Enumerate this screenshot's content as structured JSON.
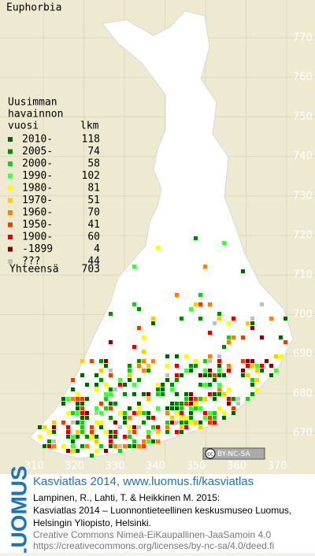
{
  "title": "Euphorbia",
  "legend": {
    "heading": [
      "Uusimman",
      "havainnon",
      "vuosi"
    ],
    "count_heading": "lkm",
    "entries": [
      {
        "label": "2010-",
        "count": 118,
        "color": "#006400"
      },
      {
        "label": "2005-",
        "count": 74,
        "color": "#008c00"
      },
      {
        "label": "2000-",
        "count": 58,
        "color": "#1ec81e"
      },
      {
        "label": "1990-",
        "count": 102,
        "color": "#3cff3c"
      },
      {
        "label": "1980-",
        "count": 81,
        "color": "#ffff00"
      },
      {
        "label": "1970-",
        "count": 51,
        "color": "#ffcc00"
      },
      {
        "label": "1960-",
        "count": 70,
        "color": "#ff8000"
      },
      {
        "label": "1950-",
        "count": 41,
        "color": "#e04000"
      },
      {
        "label": "1900-",
        "count": 60,
        "color": "#dc0000"
      },
      {
        "label": "-1899",
        "count": 4,
        "color": "#800000"
      },
      {
        "label": "???",
        "count": 44,
        "color": "#c0c0c0"
      }
    ],
    "total_label": "Yhteensä",
    "total": 703
  },
  "grid": {
    "y_labels": [
      770,
      760,
      750,
      740,
      730,
      720,
      710,
      700,
      690,
      680,
      670
    ],
    "x_labels": [
      310,
      320,
      330,
      340,
      350,
      360,
      370
    ]
  },
  "license_badge": {
    "icon": "cc",
    "text": "BY-NC-SA"
  },
  "footer": {
    "logo": "LUOMUS",
    "heading": "Kasviatlas 2014, www.luomus.fi/kasviatlas",
    "citation": [
      "Lampinen, R., Lahti, T. & Heikkinen M. 2015:",
      "Kasviatlas 2014 – Luonnontieteellinen keskusmuseo Luomus,",
      "Helsingin Yliopisto, Helsinki."
    ],
    "license": [
      "Creative Commons Nimeä-EiKaupallinen-JaaSamoin 4.0",
      "https://creativecommons.org/licenses/by-nc-sa/4.0/deed.fi"
    ]
  }
}
